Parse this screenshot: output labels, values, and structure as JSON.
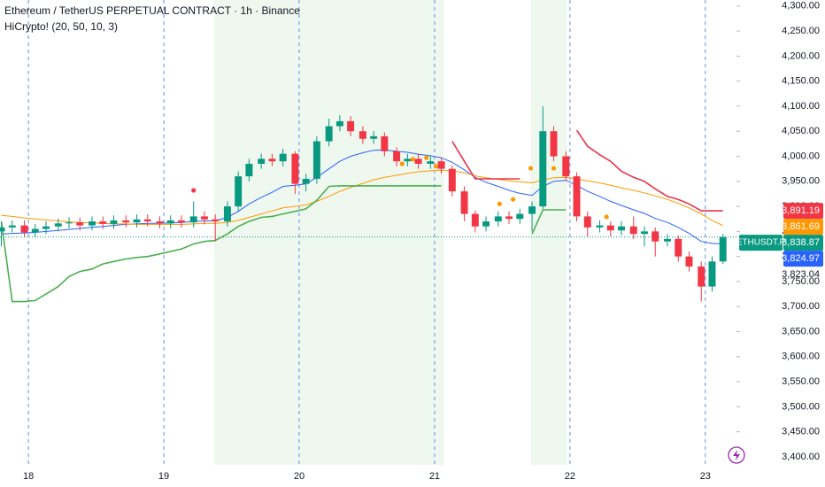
{
  "chart_data": {
    "type": "candlestick",
    "title": "Ethereum / TetherUS PERPETUAL CONTRACT · 1h · Binance",
    "subtitle": "HiCrypto! (20, 50, 10, 3)",
    "up_color": "#089981",
    "down_color": "#f23645",
    "xlim": [
      17.79,
      23.23
    ],
    "xticks": [
      18,
      19,
      20,
      21,
      22,
      23
    ],
    "ylim": [
      3384,
      4312
    ],
    "yticks": [
      {
        "value": 3400,
        "label": "3,400.00"
      },
      {
        "value": 3450,
        "label": "3,450.00"
      },
      {
        "value": 3500,
        "label": "3,500.00"
      },
      {
        "value": 3550,
        "label": "3,550.00"
      },
      {
        "value": 3600,
        "label": "3,600.00"
      },
      {
        "value": 3650,
        "label": "3,650.00"
      },
      {
        "value": 3700,
        "label": "3,700.00"
      },
      {
        "value": 3750,
        "label": "3,750.00"
      },
      {
        "value": 3800,
        "label": "3,800.00"
      },
      {
        "value": 3850,
        "label": "3,850.00"
      },
      {
        "value": 3900,
        "label": "3,900.00"
      },
      {
        "value": 3950,
        "label": "3,950.00"
      },
      {
        "value": 4000,
        "label": "4,000.00"
      },
      {
        "value": 4050,
        "label": "4,050.00"
      },
      {
        "value": 4100,
        "label": "4,100.00"
      },
      {
        "value": 4150,
        "label": "4,150.00"
      },
      {
        "value": 4200,
        "label": "4,200.00"
      },
      {
        "value": 4250,
        "label": "4,250.00"
      },
      {
        "value": 4300,
        "label": "4,300.00"
      }
    ],
    "shaded_ranges": [
      [
        19.37,
        21.07
      ],
      [
        21.71,
        21.98
      ]
    ],
    "x": [
      17.8,
      17.88,
      17.97,
      18.05,
      18.13,
      18.22,
      18.3,
      18.38,
      18.47,
      18.55,
      18.63,
      18.72,
      18.8,
      18.88,
      18.97,
      19.05,
      19.13,
      19.22,
      19.3,
      19.38,
      19.47,
      19.55,
      19.63,
      19.72,
      19.8,
      19.88,
      19.97,
      20.05,
      20.13,
      20.22,
      20.3,
      20.38,
      20.47,
      20.55,
      20.63,
      20.72,
      20.8,
      20.88,
      20.97,
      21.05,
      21.13,
      21.22,
      21.3,
      21.38,
      21.47,
      21.55,
      21.63,
      21.72,
      21.8,
      21.88,
      21.97,
      22.05,
      22.13,
      22.22,
      22.3,
      22.38,
      22.47,
      22.55,
      22.63,
      22.72,
      22.8,
      22.88,
      22.97,
      23.05,
      23.13
    ],
    "open": [
      3850,
      3858,
      3862,
      3848,
      3855,
      3860,
      3866,
      3868,
      3862,
      3870,
      3865,
      3872,
      3868,
      3874,
      3870,
      3866,
      3872,
      3868,
      3880,
      3874,
      3870,
      3900,
      3960,
      3985,
      3995,
      3990,
      4005,
      3945,
      3955,
      4030,
      4060,
      4070,
      4050,
      4035,
      4040,
      4010,
      3990,
      3995,
      3985,
      3990,
      3975,
      3930,
      3885,
      3860,
      3870,
      3880,
      3875,
      3885,
      3900,
      4050,
      4000,
      3960,
      3880,
      3858,
      3862,
      3852,
      3860,
      3845,
      3850,
      3830,
      3835,
      3800,
      3780,
      3740,
      3790
    ],
    "high": [
      3868,
      3872,
      3872,
      3865,
      3870,
      3876,
      3878,
      3878,
      3880,
      3880,
      3882,
      3882,
      3884,
      3884,
      3880,
      3882,
      3882,
      3910,
      3890,
      3884,
      3910,
      3970,
      3995,
      4005,
      4005,
      4015,
      4010,
      3965,
      4040,
      4075,
      4082,
      4080,
      4060,
      4050,
      4048,
      4018,
      4005,
      4005,
      4000,
      3998,
      3982,
      3940,
      3892,
      3880,
      3890,
      3890,
      3895,
      3910,
      4100,
      4060,
      4010,
      3968,
      3890,
      3872,
      3870,
      3870,
      3880,
      3860,
      3858,
      3845,
      3842,
      3810,
      3790,
      3800,
      3845
    ],
    "low": [
      3820,
      3848,
      3838,
      3838,
      3845,
      3850,
      3856,
      3852,
      3852,
      3855,
      3855,
      3858,
      3858,
      3860,
      3856,
      3856,
      3858,
      3858,
      3864,
      3830,
      3860,
      3890,
      3950,
      3975,
      3980,
      3980,
      3925,
      3930,
      3945,
      4020,
      4050,
      4040,
      4025,
      4025,
      4000,
      3980,
      3980,
      3975,
      3975,
      3965,
      3920,
      3870,
      3848,
      3850,
      3860,
      3865,
      3865,
      3850,
      3895,
      3990,
      3950,
      3870,
      3840,
      3848,
      3840,
      3842,
      3835,
      3820,
      3800,
      3820,
      3790,
      3770,
      3710,
      3730,
      3785
    ],
    "close": [
      3858,
      3862,
      3848,
      3855,
      3860,
      3866,
      3868,
      3862,
      3870,
      3865,
      3872,
      3868,
      3874,
      3870,
      3866,
      3872,
      3868,
      3880,
      3874,
      3870,
      3900,
      3960,
      3985,
      3995,
      3990,
      4005,
      3945,
      3955,
      4030,
      4060,
      4070,
      4050,
      4035,
      4040,
      4010,
      3990,
      3995,
      3985,
      3990,
      3975,
      3930,
      3885,
      3860,
      3870,
      3880,
      3875,
      3885,
      3900,
      4050,
      4000,
      3960,
      3880,
      3858,
      3862,
      3852,
      3860,
      3845,
      3850,
      3830,
      3835,
      3800,
      3780,
      3740,
      3790,
      3838.87
    ],
    "lines": [
      {
        "color": "#2962ff",
        "width": 1,
        "values": [
          3845,
          3846,
          3847,
          3848,
          3850,
          3852,
          3854,
          3856,
          3858,
          3860,
          3862,
          3864,
          3865,
          3866,
          3866,
          3867,
          3868,
          3870,
          3871,
          3871,
          3878,
          3890,
          3905,
          3918,
          3928,
          3940,
          3942,
          3945,
          3958,
          3975,
          3990,
          4000,
          4007,
          4012,
          4013,
          4010,
          4008,
          4004,
          4001,
          3997,
          3988,
          3973,
          3958,
          3948,
          3940,
          3932,
          3926,
          3922,
          3940,
          3950,
          3952,
          3942,
          3930,
          3920,
          3910,
          3902,
          3893,
          3886,
          3876,
          3868,
          3858,
          3846,
          3830,
          3826,
          3824.97
        ]
      },
      {
        "color": "#ff9800",
        "width": 1,
        "values": [
          3882,
          3880,
          3877,
          3875,
          3873,
          3871,
          3869,
          3868,
          3867,
          3866,
          3865,
          3865,
          3864,
          3864,
          3864,
          3864,
          3864,
          3865,
          3866,
          3866,
          3868,
          3872,
          3878,
          3885,
          3891,
          3897,
          3900,
          3903,
          3910,
          3920,
          3930,
          3938,
          3946,
          3953,
          3958,
          3962,
          3966,
          3969,
          3971,
          3972,
          3971,
          3967,
          3961,
          3957,
          3954,
          3951,
          3949,
          3947,
          3953,
          3957,
          3958,
          3955,
          3951,
          3947,
          3942,
          3937,
          3932,
          3927,
          3921,
          3914,
          3906,
          3897,
          3885,
          3872,
          3861.69
        ]
      },
      {
        "color": "#4caf50",
        "width": 1.6,
        "values": [
          3870,
          3710,
          3710,
          3712,
          3725,
          3740,
          3760,
          3770,
          3775,
          3785,
          3790,
          3795,
          3798,
          3800,
          3805,
          3810,
          3815,
          3825,
          3830,
          3832,
          3845,
          3860,
          3870,
          3878,
          3880,
          3885,
          3890,
          3895,
          3912,
          3940,
          3941,
          3941,
          3941,
          3941,
          3941,
          3941,
          3941,
          3941,
          3941,
          3941,
          null,
          null,
          null,
          null,
          null,
          null,
          null,
          3845,
          3893,
          3893,
          3893,
          null,
          null,
          null,
          null,
          null,
          null,
          null,
          null,
          null,
          null,
          null,
          null,
          null,
          null
        ]
      },
      {
        "color": "#e8334a",
        "width": 1.6,
        "values": [
          null,
          null,
          null,
          null,
          null,
          null,
          null,
          null,
          null,
          null,
          null,
          null,
          null,
          null,
          null,
          null,
          null,
          null,
          null,
          null,
          null,
          null,
          null,
          null,
          null,
          null,
          null,
          null,
          null,
          null,
          null,
          null,
          null,
          null,
          null,
          null,
          null,
          null,
          null,
          null,
          4030,
          3990,
          3955,
          3955,
          3955,
          3955,
          3955,
          null,
          null,
          null,
          null,
          4052,
          4020,
          4003,
          3990,
          3970,
          3958,
          3950,
          3935,
          3920,
          3914,
          3905,
          3891.19,
          3891.19,
          3891.19
        ]
      }
    ],
    "signals": {
      "x": [
        19.22,
        20.76,
        20.84,
        20.94,
        21.01,
        21.48,
        21.58,
        21.71,
        21.88,
        22.27
      ],
      "values": [
        3932,
        3985,
        3994,
        3997,
        3980,
        3905,
        3914,
        3976,
        3976,
        3879
      ],
      "colors": [
        "#f23645",
        "#ff9800",
        "#ff9800",
        "#ff9800",
        "#ff9800",
        "#ff9800",
        "#ff9800",
        "#ff9800",
        "#ff9800",
        "#ff9800"
      ]
    },
    "symbol": "ETHUSDT.P",
    "last_price": 3838.87,
    "price_labels": [
      {
        "value": 3891.19,
        "label": "3,891.19",
        "color": "#f23645"
      },
      {
        "value": 3861.69,
        "label": "3,861.69",
        "color": "#ff9800"
      },
      {
        "value": 3838.87,
        "label": "3,838.87",
        "color": "#089981"
      },
      {
        "value": 3824.97,
        "label": "3,824.97",
        "color": "#2962ff"
      },
      {
        "value": 3823.04,
        "label": "3,823.04"
      }
    ]
  }
}
